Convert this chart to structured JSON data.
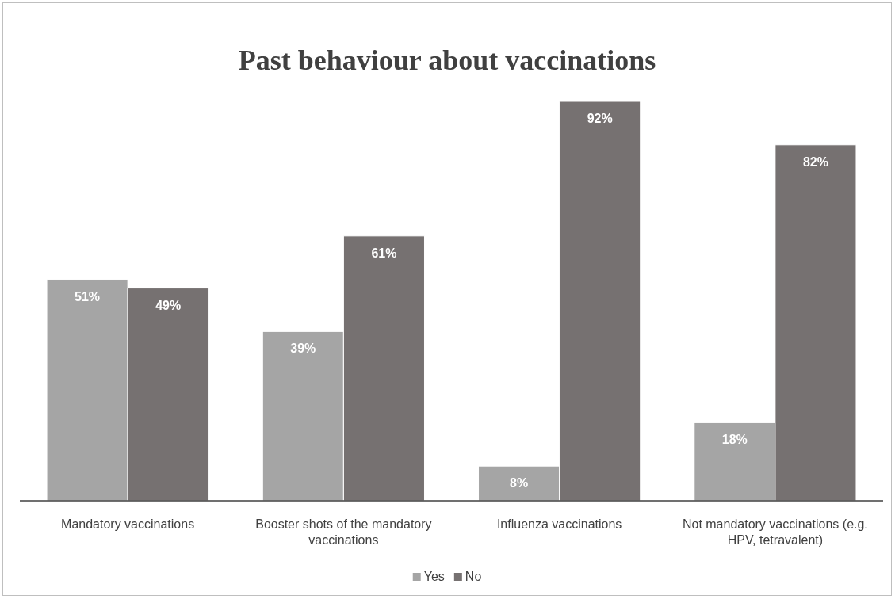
{
  "chart_data": {
    "type": "bar",
    "title": "Past behaviour about vaccinations",
    "categories": [
      "Mandatory vaccinations",
      "Booster shots of the mandatory vaccinations",
      "Influenza vaccinations",
      "Not mandatory vaccinations (e.g. HPV, tetravalent)"
    ],
    "series": [
      {
        "name": "Yes",
        "color": "#a5a5a5",
        "values": [
          51,
          39,
          8,
          18
        ],
        "value_labels": [
          "51%",
          "39%",
          "8%",
          "18%"
        ]
      },
      {
        "name": "No",
        "color": "#767171",
        "values": [
          49,
          61,
          92,
          82
        ],
        "value_labels": [
          "49%",
          "61%",
          "92%",
          "82%"
        ]
      }
    ],
    "legend": "bottom"
  }
}
